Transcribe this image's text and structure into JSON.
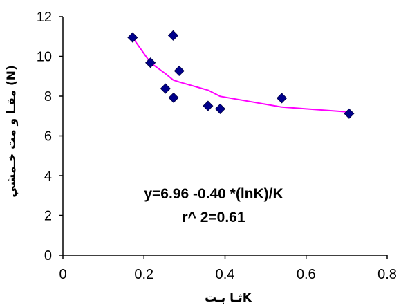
{
  "chart_data": {
    "type": "scatter",
    "xlabel": "ثـا بـتK",
    "ylabel": "مقـا و مت خـمشي (N)",
    "xlim": [
      0,
      0.8
    ],
    "ylim": [
      0,
      12
    ],
    "x_ticks": [
      "0",
      "0.2",
      "0.4",
      "0.6",
      "0.8"
    ],
    "y_ticks": [
      "0",
      "2",
      "4",
      "6",
      "8",
      "10",
      "12"
    ],
    "grid": false,
    "legend": "none",
    "series": [
      {
        "type": "scatter",
        "marker": "diamond",
        "color": "#00008B",
        "points": [
          {
            "x": 0.172,
            "y": 10.95
          },
          {
            "x": 0.216,
            "y": 9.68
          },
          {
            "x": 0.253,
            "y": 8.38
          },
          {
            "x": 0.272,
            "y": 11.05
          },
          {
            "x": 0.273,
            "y": 7.92
          },
          {
            "x": 0.287,
            "y": 9.27
          },
          {
            "x": 0.358,
            "y": 7.51
          },
          {
            "x": 0.388,
            "y": 7.36
          },
          {
            "x": 0.54,
            "y": 7.9
          },
          {
            "x": 0.706,
            "y": 7.12
          }
        ]
      },
      {
        "type": "line",
        "color": "#FF00FF",
        "fit": "y = 6.96 - 0.40*ln(K)/K",
        "points": [
          {
            "x": 0.172,
            "y": 10.95
          },
          {
            "x": 0.216,
            "y": 9.68
          },
          {
            "x": 0.253,
            "y": 9.13
          },
          {
            "x": 0.272,
            "y": 8.81
          },
          {
            "x": 0.287,
            "y": 8.71
          },
          {
            "x": 0.358,
            "y": 8.3
          },
          {
            "x": 0.388,
            "y": 7.99
          },
          {
            "x": 0.54,
            "y": 7.45
          },
          {
            "x": 0.706,
            "y": 7.2
          }
        ]
      }
    ],
    "annotations": [
      "y=6.96 -0.40 *(lnK)/K",
      "r^ 2=0.61"
    ]
  }
}
